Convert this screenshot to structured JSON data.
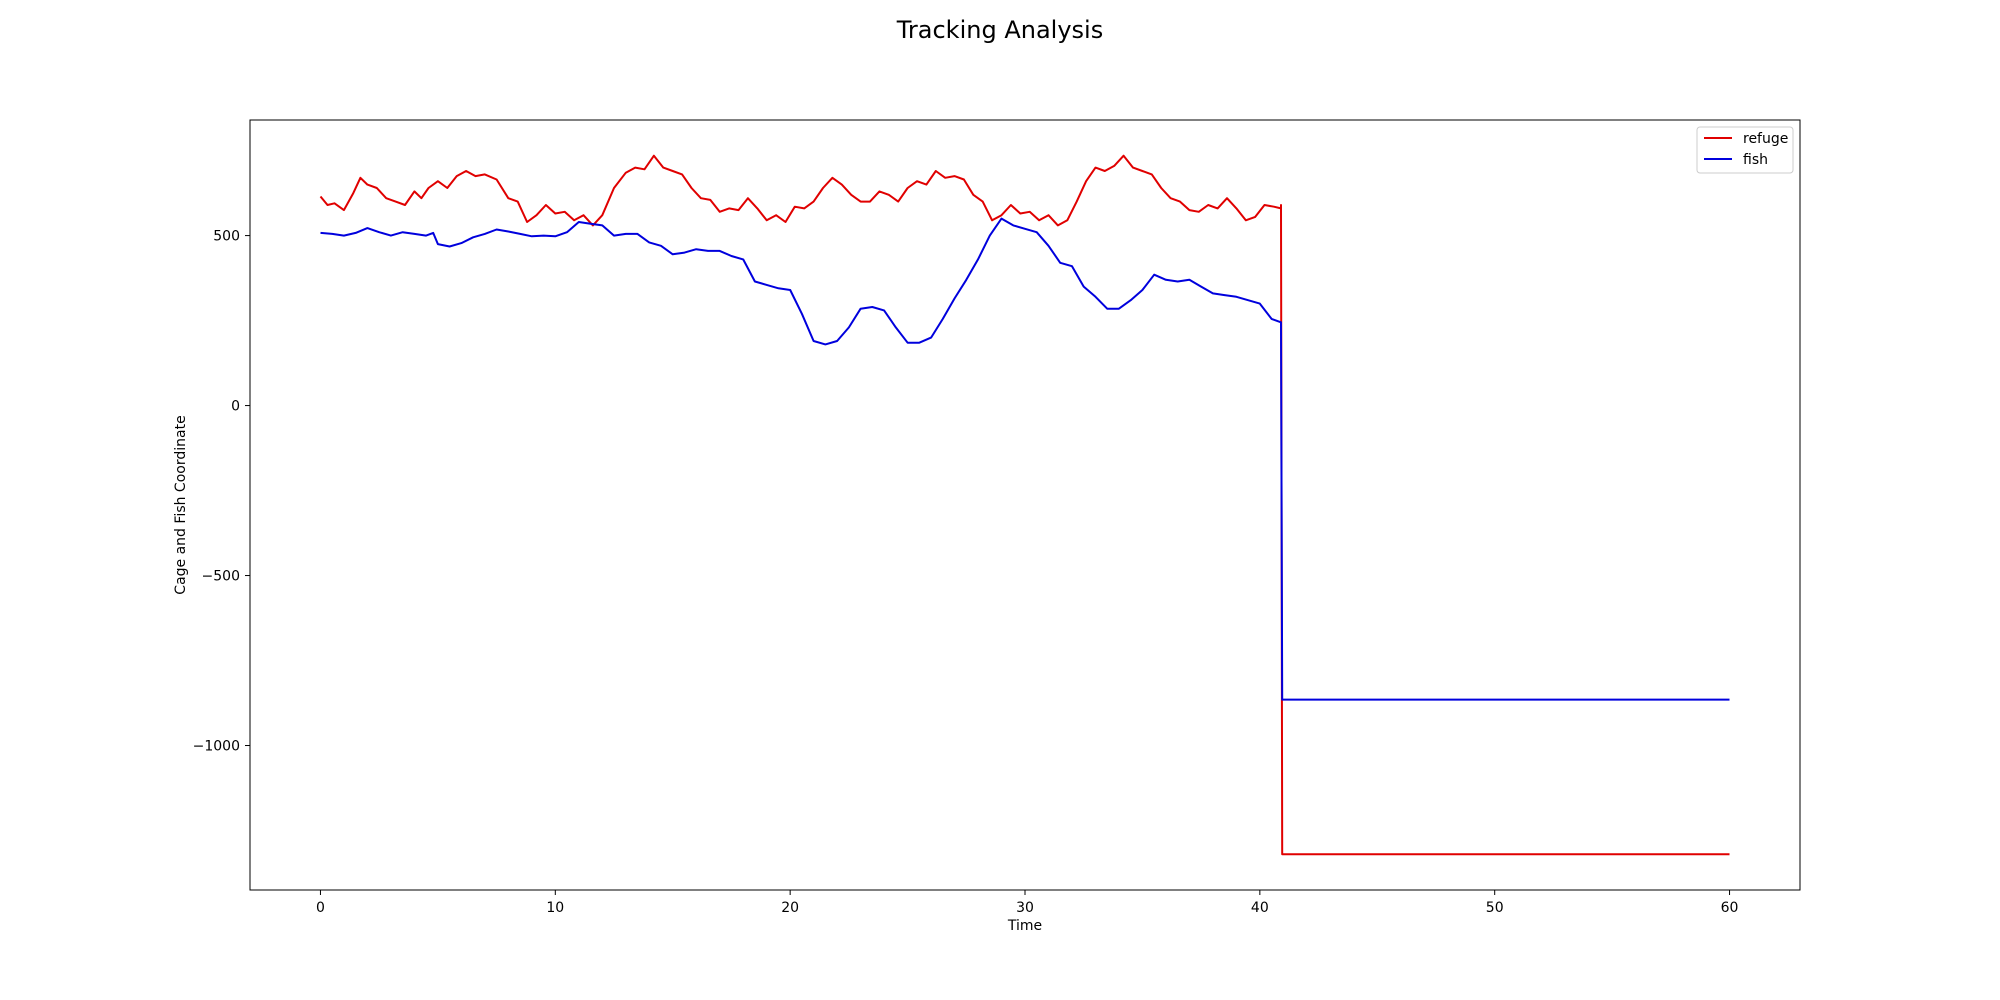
{
  "chart_data": {
    "type": "line",
    "title": "Tracking Analysis",
    "xlabel": "Time",
    "ylabel": "Cage and Fish Coordinate",
    "xlim": [
      -3,
      63
    ],
    "ylim": [
      -1425,
      840
    ],
    "xticks": [
      0,
      10,
      20,
      30,
      40,
      50,
      60
    ],
    "yticks": [
      -1000,
      -500,
      0,
      500
    ],
    "grid": false,
    "legend_position": "top-right",
    "series": [
      {
        "name": "refuge",
        "color": "#e00000",
        "points": [
          [
            0.0,
            615
          ],
          [
            0.3,
            590
          ],
          [
            0.6,
            595
          ],
          [
            1.0,
            575
          ],
          [
            1.4,
            625
          ],
          [
            1.7,
            670
          ],
          [
            2.0,
            650
          ],
          [
            2.4,
            640
          ],
          [
            2.8,
            610
          ],
          [
            3.2,
            600
          ],
          [
            3.6,
            590
          ],
          [
            4.0,
            630
          ],
          [
            4.3,
            610
          ],
          [
            4.6,
            640
          ],
          [
            5.0,
            660
          ],
          [
            5.4,
            640
          ],
          [
            5.8,
            675
          ],
          [
            6.2,
            690
          ],
          [
            6.6,
            675
          ],
          [
            7.0,
            680
          ],
          [
            7.5,
            665
          ],
          [
            8.0,
            610
          ],
          [
            8.4,
            600
          ],
          [
            8.8,
            540
          ],
          [
            9.2,
            560
          ],
          [
            9.6,
            590
          ],
          [
            10.0,
            565
          ],
          [
            10.4,
            570
          ],
          [
            10.8,
            545
          ],
          [
            11.2,
            560
          ],
          [
            11.6,
            530
          ],
          [
            12.0,
            560
          ],
          [
            12.5,
            640
          ],
          [
            13.0,
            685
          ],
          [
            13.4,
            700
          ],
          [
            13.8,
            695
          ],
          [
            14.2,
            735
          ],
          [
            14.6,
            700
          ],
          [
            15.0,
            690
          ],
          [
            15.4,
            680
          ],
          [
            15.8,
            640
          ],
          [
            16.2,
            610
          ],
          [
            16.6,
            605
          ],
          [
            17.0,
            570
          ],
          [
            17.4,
            580
          ],
          [
            17.8,
            575
          ],
          [
            18.2,
            610
          ],
          [
            18.6,
            580
          ],
          [
            19.0,
            545
          ],
          [
            19.4,
            560
          ],
          [
            19.8,
            540
          ],
          [
            20.2,
            585
          ],
          [
            20.6,
            580
          ],
          [
            21.0,
            600
          ],
          [
            21.4,
            640
          ],
          [
            21.8,
            670
          ],
          [
            22.2,
            650
          ],
          [
            22.6,
            620
          ],
          [
            23.0,
            600
          ],
          [
            23.4,
            600
          ],
          [
            23.8,
            630
          ],
          [
            24.2,
            620
          ],
          [
            24.6,
            600
          ],
          [
            25.0,
            640
          ],
          [
            25.4,
            660
          ],
          [
            25.8,
            650
          ],
          [
            26.2,
            690
          ],
          [
            26.6,
            670
          ],
          [
            27.0,
            675
          ],
          [
            27.4,
            665
          ],
          [
            27.8,
            620
          ],
          [
            28.2,
            600
          ],
          [
            28.6,
            545
          ],
          [
            29.0,
            560
          ],
          [
            29.4,
            590
          ],
          [
            29.8,
            565
          ],
          [
            30.2,
            570
          ],
          [
            30.6,
            545
          ],
          [
            31.0,
            560
          ],
          [
            31.4,
            530
          ],
          [
            31.8,
            545
          ],
          [
            32.2,
            600
          ],
          [
            32.6,
            660
          ],
          [
            33.0,
            700
          ],
          [
            33.4,
            690
          ],
          [
            33.8,
            705
          ],
          [
            34.2,
            735
          ],
          [
            34.6,
            700
          ],
          [
            35.0,
            690
          ],
          [
            35.4,
            680
          ],
          [
            35.8,
            640
          ],
          [
            36.2,
            610
          ],
          [
            36.6,
            600
          ],
          [
            37.0,
            575
          ],
          [
            37.4,
            570
          ],
          [
            37.8,
            590
          ],
          [
            38.2,
            580
          ],
          [
            38.6,
            610
          ],
          [
            39.0,
            580
          ],
          [
            39.4,
            545
          ],
          [
            39.8,
            555
          ],
          [
            40.2,
            590
          ],
          [
            40.6,
            585
          ],
          [
            40.9,
            580
          ],
          [
            40.9,
            590
          ],
          [
            40.95,
            -1320
          ],
          [
            60.0,
            -1320
          ]
        ]
      },
      {
        "name": "fish",
        "color": "#0000dd",
        "points": [
          [
            0.0,
            508
          ],
          [
            0.5,
            505
          ],
          [
            1.0,
            500
          ],
          [
            1.5,
            508
          ],
          [
            2.0,
            522
          ],
          [
            2.5,
            510
          ],
          [
            3.0,
            500
          ],
          [
            3.5,
            510
          ],
          [
            4.0,
            505
          ],
          [
            4.5,
            500
          ],
          [
            4.8,
            508
          ],
          [
            5.0,
            475
          ],
          [
            5.5,
            468
          ],
          [
            6.0,
            478
          ],
          [
            6.5,
            495
          ],
          [
            7.0,
            505
          ],
          [
            7.5,
            518
          ],
          [
            8.0,
            512
          ],
          [
            8.5,
            505
          ],
          [
            9.0,
            498
          ],
          [
            9.5,
            500
          ],
          [
            10.0,
            498
          ],
          [
            10.5,
            510
          ],
          [
            11.0,
            540
          ],
          [
            11.5,
            535
          ],
          [
            12.0,
            530
          ],
          [
            12.5,
            500
          ],
          [
            13.0,
            505
          ],
          [
            13.5,
            505
          ],
          [
            14.0,
            480
          ],
          [
            14.5,
            470
          ],
          [
            15.0,
            445
          ],
          [
            15.5,
            450
          ],
          [
            16.0,
            460
          ],
          [
            16.5,
            455
          ],
          [
            17.0,
            455
          ],
          [
            17.5,
            440
          ],
          [
            18.0,
            430
          ],
          [
            18.5,
            365
          ],
          [
            19.0,
            355
          ],
          [
            19.5,
            345
          ],
          [
            20.0,
            340
          ],
          [
            20.5,
            270
          ],
          [
            21.0,
            190
          ],
          [
            21.5,
            180
          ],
          [
            22.0,
            190
          ],
          [
            22.5,
            230
          ],
          [
            23.0,
            285
          ],
          [
            23.5,
            290
          ],
          [
            24.0,
            280
          ],
          [
            24.5,
            230
          ],
          [
            25.0,
            185
          ],
          [
            25.5,
            185
          ],
          [
            26.0,
            200
          ],
          [
            26.5,
            255
          ],
          [
            27.0,
            315
          ],
          [
            27.5,
            370
          ],
          [
            28.0,
            430
          ],
          [
            28.5,
            500
          ],
          [
            29.0,
            550
          ],
          [
            29.5,
            530
          ],
          [
            30.0,
            520
          ],
          [
            30.5,
            510
          ],
          [
            31.0,
            470
          ],
          [
            31.5,
            420
          ],
          [
            32.0,
            410
          ],
          [
            32.5,
            350
          ],
          [
            33.0,
            320
          ],
          [
            33.5,
            285
          ],
          [
            34.0,
            285
          ],
          [
            34.5,
            310
          ],
          [
            35.0,
            340
          ],
          [
            35.5,
            385
          ],
          [
            36.0,
            370
          ],
          [
            36.5,
            365
          ],
          [
            37.0,
            370
          ],
          [
            37.5,
            350
          ],
          [
            38.0,
            330
          ],
          [
            38.5,
            325
          ],
          [
            39.0,
            320
          ],
          [
            39.5,
            310
          ],
          [
            40.0,
            300
          ],
          [
            40.5,
            255
          ],
          [
            40.9,
            245
          ],
          [
            40.95,
            -865
          ],
          [
            60.0,
            -865
          ]
        ]
      }
    ]
  }
}
